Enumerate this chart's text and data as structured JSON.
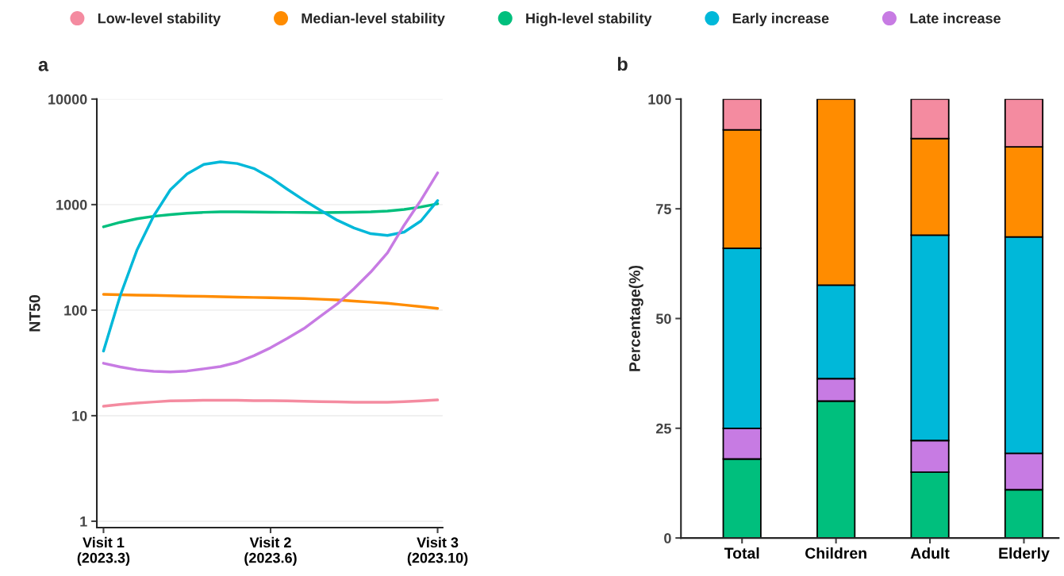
{
  "chart_data": [
    {
      "type": "line",
      "title": "a",
      "ylabel": "NT50",
      "log": "y",
      "grid": "y",
      "legend": "top",
      "marker": "none",
      "line_style": "solid",
      "categories": [
        "Visit 1\n(2023.3)",
        null,
        null,
        null,
        null,
        null,
        null,
        null,
        null,
        null,
        "Visit 2\n(2023.6)",
        null,
        null,
        null,
        null,
        null,
        null,
        null,
        null,
        null,
        "Visit 3\n(2023.10)"
      ],
      "ylim": [
        0.87,
        10000
      ],
      "yticks": [
        1,
        10,
        100,
        1000,
        10000
      ],
      "series": [
        {
          "name": "Low-level stability",
          "color": "#f48ba0",
          "values": [
            12.3,
            12.8,
            13.2,
            13.5,
            13.8,
            13.9,
            14,
            14,
            14,
            13.9,
            13.9,
            13.8,
            13.7,
            13.6,
            13.5,
            13.4,
            13.4,
            13.4,
            13.6,
            13.8,
            14.1
          ]
        },
        {
          "name": "Median-level stability",
          "color": "#ff8c00",
          "values": [
            141,
            140,
            139,
            138,
            137,
            136,
            135,
            134,
            133,
            132,
            131,
            130,
            129,
            127,
            125,
            122,
            119,
            116,
            112,
            108,
            104
          ]
        },
        {
          "name": "High-level stability",
          "color": "#00bf7d",
          "values": [
            616,
            680,
            735,
            775,
            805,
            830,
            845,
            855,
            855,
            850,
            848,
            845,
            842,
            841,
            843,
            848,
            855,
            870,
            900,
            950,
            1018
          ]
        },
        {
          "name": "Early increase",
          "color": "#00b8d9",
          "values": [
            41,
            137,
            370,
            780,
            1380,
            1950,
            2400,
            2540,
            2450,
            2200,
            1800,
            1400,
            1100,
            880,
            710,
            600,
            530,
            510,
            550,
            700,
            1091
          ]
        },
        {
          "name": "Late increase",
          "color": "#c77be3",
          "values": [
            31.4,
            29,
            27.2,
            26.3,
            26,
            26.5,
            27.8,
            29.2,
            32,
            37,
            44,
            54,
            67,
            88,
            115,
            160,
            230,
            350,
            640,
            1100,
            1999
          ]
        }
      ]
    },
    {
      "type": "bar",
      "title": "b",
      "ylabel": "Percentage(%)",
      "stacked": true,
      "grid": false,
      "categories": [
        "Total",
        "Children",
        "Adult",
        "Elderly"
      ],
      "ylim": [
        0,
        100
      ],
      "yticks": [
        0,
        25,
        50,
        75,
        100
      ],
      "series": [
        {
          "color": "#00bf7d",
          "values": [
            18,
            31.2,
            15,
            11
          ]
        },
        {
          "color": "#c77be3",
          "values": [
            7,
            5.1,
            7.2,
            8.3
          ]
        },
        {
          "color": "#00b8d9",
          "values": [
            41,
            21.3,
            46.8,
            49.3
          ]
        },
        {
          "color": "#ff8c00",
          "values": [
            27,
            42.4,
            22,
            20.5
          ]
        },
        {
          "color": "#f48ba0",
          "values": [
            7,
            null,
            9,
            10.9
          ]
        }
      ]
    }
  ]
}
